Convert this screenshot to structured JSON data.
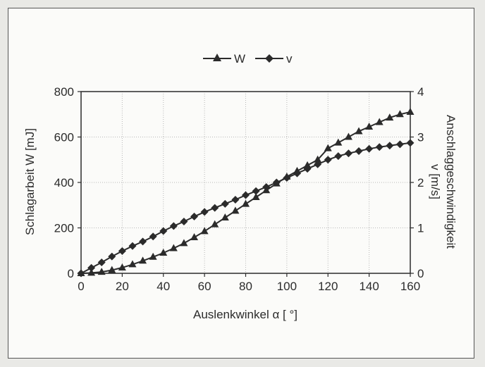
{
  "chart_data": {
    "type": "line",
    "xlabel": "Auslenkwinkel α [ °]",
    "ylabel_left": "Schlagarbeit W [mJ]",
    "ylabel_right": [
      "Anschlaggeschwindigkeit",
      "v [m/s]"
    ],
    "xlim": [
      0,
      160
    ],
    "ylim_left": [
      0,
      800
    ],
    "ylim_right": [
      0,
      4
    ],
    "x_ticks": [
      0,
      20,
      40,
      60,
      80,
      100,
      120,
      140,
      160
    ],
    "y_ticks_left": [
      0,
      200,
      400,
      600,
      800
    ],
    "y_ticks_right": [
      0,
      1,
      2,
      3,
      4
    ],
    "grid": true,
    "legend_position": "top-center",
    "x": [
      0,
      5,
      10,
      15,
      20,
      25,
      30,
      35,
      40,
      45,
      50,
      55,
      60,
      65,
      70,
      75,
      80,
      85,
      90,
      95,
      100,
      105,
      110,
      115,
      120,
      125,
      130,
      135,
      140,
      145,
      150,
      155,
      160
    ],
    "series": [
      {
        "name": "W",
        "axis": "left",
        "marker": "triangle",
        "values": [
          0,
          2,
          6,
          14,
          25,
          39,
          55,
          72,
          90,
          110,
          132,
          158,
          185,
          215,
          245,
          275,
          305,
          335,
          365,
          395,
          425,
          450,
          475,
          500,
          550,
          575,
          600,
          625,
          645,
          665,
          685,
          700,
          710
        ]
      },
      {
        "name": "v",
        "axis": "right",
        "marker": "diamond",
        "values": [
          0,
          0.12,
          0.24,
          0.37,
          0.49,
          0.6,
          0.7,
          0.81,
          0.93,
          1.04,
          1.14,
          1.25,
          1.35,
          1.44,
          1.53,
          1.62,
          1.72,
          1.81,
          1.9,
          2.0,
          2.1,
          2.2,
          2.3,
          2.4,
          2.5,
          2.58,
          2.64,
          2.69,
          2.74,
          2.78,
          2.81,
          2.84,
          2.87
        ]
      }
    ]
  },
  "colors": {
    "ink": "#2b2b2b",
    "grid": "#b8b8b8"
  }
}
